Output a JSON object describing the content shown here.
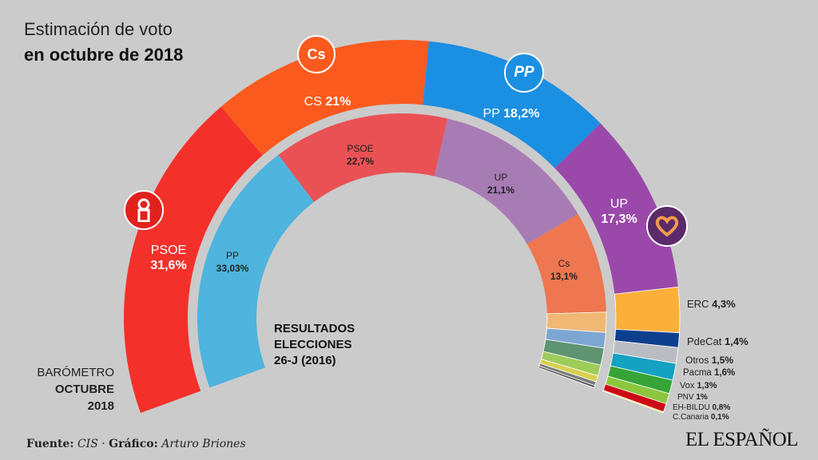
{
  "header": {
    "title_line1": "Estimación de voto",
    "title_line2": "en octubre de 2018"
  },
  "chart_data": [
    {
      "type": "pie",
      "variant": "semicircle-donut",
      "ring": "outer",
      "label": [
        "BARÓMETRO",
        "OCTUBRE",
        "2018"
      ],
      "series": [
        {
          "name": "PSOE",
          "value": 31.6,
          "label": "31,6%",
          "color": "#f4302a"
        },
        {
          "name": "CS",
          "value": 21,
          "label": "21%",
          "color": "#fb5a1e"
        },
        {
          "name": "PP",
          "value": 18.2,
          "label": "18,2%",
          "color": "#1b8fe2"
        },
        {
          "name": "UP",
          "value": 17.3,
          "label": "17,3%",
          "color": "#9a49aa"
        },
        {
          "name": "ERC",
          "value": 4.3,
          "label": "4,3%",
          "color": "#fbb03b"
        },
        {
          "name": "PdeCat",
          "value": 1.4,
          "label": "1,4%",
          "color": "#0d3f8e"
        },
        {
          "name": "Otros",
          "value": 1.5,
          "label": "1,5%",
          "color": "#b9bdc3"
        },
        {
          "name": "Pacma",
          "value": 1.6,
          "label": "1,6%",
          "color": "#15a1c2"
        },
        {
          "name": "Vox",
          "value": 1.3,
          "label": "1,3%",
          "color": "#36a436"
        },
        {
          "name": "PNV",
          "value": 1,
          "label": "1%",
          "color": "#8cc63f"
        },
        {
          "name": "EH-BILDU",
          "value": 0.8,
          "label": "0,8%",
          "color": "#cc0a16"
        },
        {
          "name": "C.Canaria",
          "value": 0.1,
          "label": "0,1%",
          "color": "#ffe600"
        }
      ]
    },
    {
      "type": "pie",
      "variant": "semicircle-donut",
      "ring": "inner",
      "label": [
        "RESULTADOS",
        "ELECCIONES",
        "26-J (2016)"
      ],
      "series": [
        {
          "name": "PP",
          "value": 33.03,
          "label": "33,03%",
          "color": "#4fb4de"
        },
        {
          "name": "PSOE",
          "value": 22.7,
          "label": "22,7%",
          "color": "#ea5155"
        },
        {
          "name": "UP",
          "value": 21.1,
          "label": "21,1%",
          "color": "#a77cb4"
        },
        {
          "name": "Cs",
          "value": 13.1,
          "label": "13,1%",
          "color": "#ee7650"
        },
        {
          "value": 2.6,
          "color": "#f0b873"
        },
        {
          "value": 2.0,
          "color": "#7ea6d3"
        },
        {
          "value": 2.2,
          "color": "#5e9471"
        },
        {
          "value": 1.4,
          "color": "#9ccc5a"
        },
        {
          "value": 0.8,
          "color": "#d8cf52"
        },
        {
          "value": 0.5,
          "color": "#7a7a7a"
        },
        {
          "value": 0.3,
          "color": "#555555"
        }
      ]
    }
  ],
  "logos": {
    "cs": "Cs",
    "pp": "PP",
    "psoe": "psoe-rose-icon",
    "up": "heart-icon"
  },
  "footer": {
    "source_label": "Fuente:",
    "source": "CIS",
    "sep": " · ",
    "credit_label": "Gráfico:",
    "credit": "Arturo Briones"
  },
  "brand": "EL ESPAÑOL"
}
